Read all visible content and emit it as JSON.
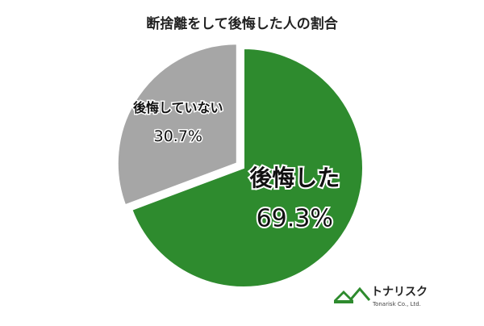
{
  "chart_data": {
    "type": "pie",
    "title": "断捨離をして後悔した人の割合",
    "categories": [
      "後悔した",
      "後悔していない"
    ],
    "values": [
      69.3,
      30.7
    ],
    "value_labels": [
      "69.3%",
      "30.7%"
    ],
    "colors": [
      "#2e8b2e",
      "#a6a6a6"
    ],
    "logo": {
      "name": "トナリスク",
      "company": "Tonarisk Co., Ltd."
    }
  }
}
